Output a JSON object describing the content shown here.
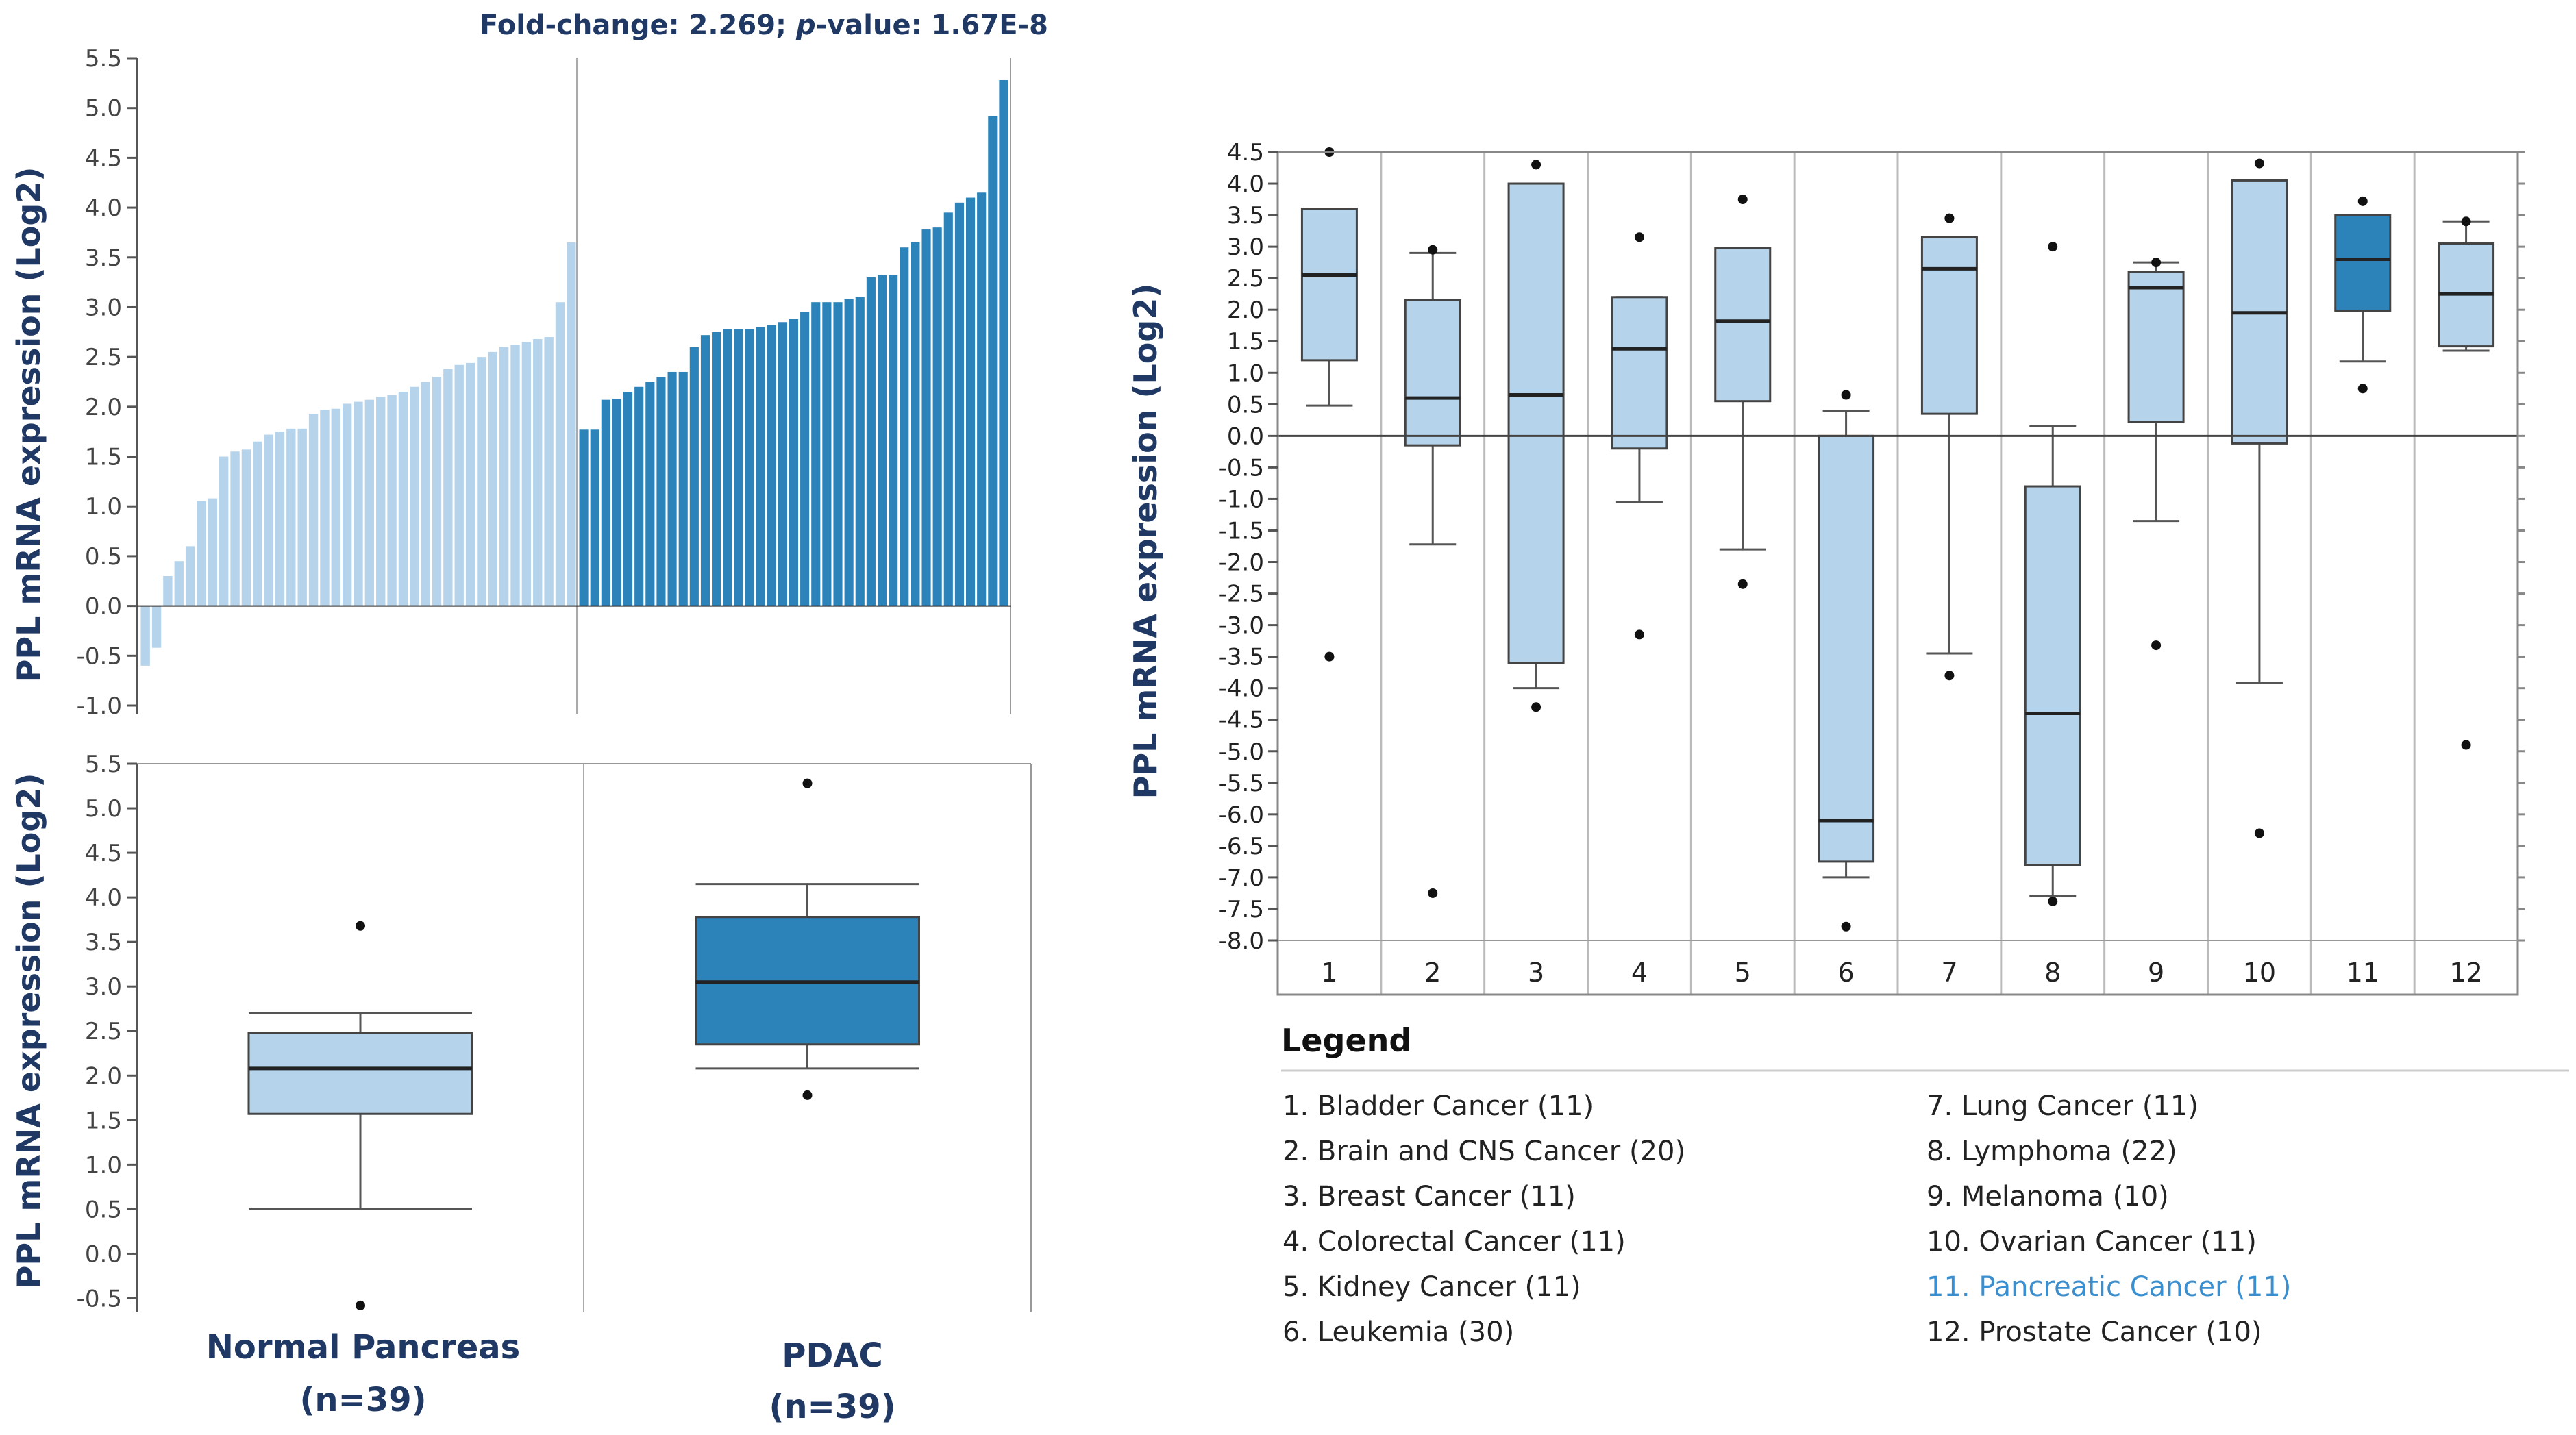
{
  "colors": {
    "normal": "#b5d3ea",
    "tumor": "#2b83ba",
    "navy": "#1f3864",
    "highlight": "#3a8fd0",
    "axis": "#555555"
  },
  "chart_data": [
    {
      "id": "waterfall",
      "type": "bar",
      "title": "Fold-change: 2.269; p-value: 1.67E-8",
      "title_parts": [
        "Fold-change: 2.269; ",
        "p",
        "-value: 1.67E-8"
      ],
      "ylabel": "PPL mRNA expression (Log2)",
      "xlabel": "",
      "ylim": [
        -1.0,
        5.5
      ],
      "yticks": [
        "5.5",
        "5.0",
        "4.5",
        "4.0",
        "3.5",
        "3.0",
        "2.5",
        "2.0",
        "1.5",
        "1.0",
        "0.5",
        "0.0",
        "-0.5",
        "-1.0"
      ],
      "series": [
        {
          "name": "Normal Pancreas",
          "values": [
            -0.6,
            -0.42,
            0.3,
            0.45,
            0.6,
            1.05,
            1.08,
            1.5,
            1.55,
            1.57,
            1.65,
            1.72,
            1.75,
            1.78,
            1.78,
            1.93,
            1.97,
            1.98,
            2.03,
            2.05,
            2.07,
            2.1,
            2.12,
            2.15,
            2.2,
            2.25,
            2.3,
            2.38,
            2.42,
            2.44,
            2.5,
            2.55,
            2.6,
            2.62,
            2.65,
            2.68,
            2.7,
            3.05,
            3.65
          ]
        },
        {
          "name": "PDAC",
          "values": [
            1.77,
            1.77,
            2.07,
            2.08,
            2.15,
            2.2,
            2.25,
            2.3,
            2.35,
            2.35,
            2.6,
            2.72,
            2.75,
            2.78,
            2.78,
            2.78,
            2.8,
            2.82,
            2.85,
            2.88,
            2.95,
            3.05,
            3.05,
            3.05,
            3.08,
            3.1,
            3.3,
            3.32,
            3.32,
            3.6,
            3.65,
            3.78,
            3.8,
            3.95,
            4.05,
            4.1,
            4.15,
            4.92,
            5.28
          ]
        }
      ]
    },
    {
      "id": "boxplot_pdac",
      "type": "box",
      "ylabel": "PPL mRNA expression (Log2)",
      "ylim": [
        -0.65,
        5.5
      ],
      "yticks": [
        "5.5",
        "5.0",
        "4.5",
        "4.0",
        "3.5",
        "3.0",
        "2.5",
        "2.0",
        "1.5",
        "1.0",
        "0.5",
        "0.0",
        "-0.5"
      ],
      "groups": [
        {
          "name": "Normal Pancreas",
          "n": "(n=39)",
          "whisker_low": 0.5,
          "q1": 1.57,
          "median": 2.08,
          "q3": 2.48,
          "whisker_high": 2.7,
          "outliers": [
            3.68,
            -0.58
          ]
        },
        {
          "name": "PDAC",
          "n": "(n=39)",
          "whisker_low": 2.08,
          "q1": 2.35,
          "median": 3.05,
          "q3": 3.78,
          "whisker_high": 4.15,
          "outliers": [
            5.28,
            1.78
          ]
        }
      ]
    },
    {
      "id": "cancer_types",
      "type": "box",
      "ylabel": "PPL mRNA expression (Log2)",
      "ylim": [
        -8.0,
        4.5
      ],
      "yticks": [
        "4.5",
        "4.0",
        "3.5",
        "3.0",
        "2.5",
        "2.0",
        "1.5",
        "1.0",
        "0.5",
        "0.0",
        "-0.5",
        "-1.0",
        "-1.5",
        "-2.0",
        "-2.5",
        "-3.0",
        "-3.5",
        "-4.0",
        "-4.5",
        "-5.0",
        "-5.5",
        "-6.0",
        "-6.5",
        "-7.0",
        "-7.5",
        "-8.0"
      ],
      "categories": [
        "1",
        "2",
        "3",
        "4",
        "5",
        "6",
        "7",
        "8",
        "9",
        "10",
        "11",
        "12"
      ],
      "boxes": [
        {
          "whisker_low": 0.48,
          "q1": 1.2,
          "median": 2.55,
          "q3": 3.6,
          "whisker_high": 3.6,
          "outliers": [
            4.5,
            -3.5
          ]
        },
        {
          "whisker_low": -1.72,
          "q1": -0.15,
          "median": 0.6,
          "q3": 2.15,
          "whisker_high": 2.9,
          "outliers": [
            2.95,
            -7.25
          ]
        },
        {
          "whisker_low": -4.0,
          "q1": -3.6,
          "median": 0.65,
          "q3": 4.0,
          "whisker_high": 4.0,
          "outliers": [
            4.3,
            -4.3
          ]
        },
        {
          "whisker_low": -1.05,
          "q1": -0.2,
          "median": 1.38,
          "q3": 2.2,
          "whisker_high": 2.2,
          "outliers": [
            3.15,
            -3.15
          ]
        },
        {
          "whisker_low": -1.8,
          "q1": 0.55,
          "median": 1.82,
          "q3": 2.98,
          "whisker_high": 2.98,
          "outliers": [
            3.75,
            -2.35
          ]
        },
        {
          "whisker_low": -7.0,
          "q1": -6.75,
          "median": -6.1,
          "q3": 0.0,
          "whisker_high": 0.4,
          "outliers": [
            0.65,
            -7.78
          ]
        },
        {
          "whisker_low": -3.45,
          "q1": 0.35,
          "median": 2.65,
          "q3": 3.15,
          "whisker_high": 3.15,
          "outliers": [
            3.45,
            -3.8
          ]
        },
        {
          "whisker_low": -7.3,
          "q1": -6.8,
          "median": -4.4,
          "q3": -0.8,
          "whisker_high": 0.15,
          "outliers": [
            3.0,
            -7.38
          ]
        },
        {
          "whisker_low": -1.35,
          "q1": 0.22,
          "median": 2.35,
          "q3": 2.6,
          "whisker_high": 2.75,
          "outliers": [
            2.75,
            -3.32
          ]
        },
        {
          "whisker_low": -3.92,
          "q1": -0.12,
          "median": 1.95,
          "q3": 4.05,
          "whisker_high": 4.05,
          "outliers": [
            4.32,
            -6.3
          ]
        },
        {
          "whisker_low": 1.18,
          "q1": 1.98,
          "median": 2.8,
          "q3": 3.5,
          "whisker_high": 3.5,
          "outliers": [
            3.72,
            0.75
          ]
        },
        {
          "whisker_low": 1.35,
          "q1": 1.42,
          "median": 2.25,
          "q3": 3.05,
          "whisker_high": 3.4,
          "outliers": [
            3.4,
            -4.9
          ]
        }
      ],
      "highlight_index": 10,
      "legend_title": "Legend",
      "legend": [
        "1. Bladder Cancer (11)",
        "2. Brain and CNS Cancer (20)",
        "3. Breast Cancer (11)",
        "4. Colorectal Cancer (11)",
        "5. Kidney Cancer (11)",
        "6. Leukemia (30)",
        "7. Lung Cancer (11)",
        "8. Lymphoma (22)",
        "9. Melanoma (10)",
        "10. Ovarian Cancer (11)",
        "11. Pancreatic Cancer (11)",
        "12. Prostate Cancer (10)"
      ]
    }
  ]
}
